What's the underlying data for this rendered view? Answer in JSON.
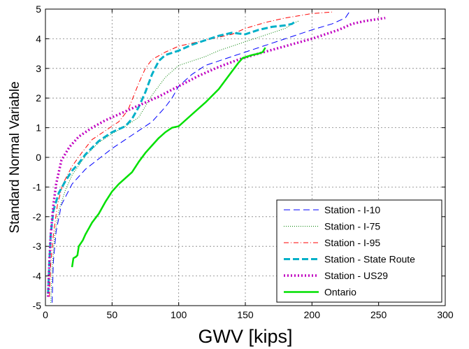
{
  "chart_data": {
    "type": "line",
    "title": "",
    "xlabel": "GWV [kips]",
    "ylabel": "Standard Normal Variable",
    "xlim": [
      0,
      300
    ],
    "ylim": [
      -5,
      5
    ],
    "xticks": [
      0,
      50,
      100,
      150,
      200,
      250,
      300
    ],
    "yticks": [
      -5,
      -4,
      -3,
      -2,
      -1,
      0,
      1,
      2,
      3,
      4,
      5
    ],
    "grid": true,
    "legend_position": "bottom-right",
    "series": [
      {
        "name": "Station - I-10",
        "color": "#0000ff",
        "style": "dashdash",
        "x": [
          5,
          6,
          8,
          12,
          20,
          30,
          40,
          50,
          60,
          70,
          80,
          90,
          95,
          100,
          110,
          120,
          140,
          160,
          180,
          200,
          215,
          225,
          228
        ],
        "y": [
          -4.9,
          -3.5,
          -2.5,
          -1.6,
          -0.9,
          -0.4,
          -0.05,
          0.3,
          0.6,
          0.9,
          1.2,
          1.7,
          2.0,
          2.4,
          2.8,
          3.1,
          3.4,
          3.7,
          4.0,
          4.3,
          4.5,
          4.7,
          4.9
        ]
      },
      {
        "name": "Station - I-75",
        "color": "#008000",
        "style": "dotted",
        "x": [
          4,
          5,
          7,
          10,
          15,
          20,
          30,
          40,
          50,
          60,
          70,
          80,
          90,
          100,
          110,
          120,
          130,
          140,
          150,
          160,
          170,
          180,
          185,
          190
        ],
        "y": [
          -4.9,
          -3.8,
          -2.6,
          -1.8,
          -1.1,
          -0.6,
          0.05,
          0.5,
          0.8,
          1.05,
          1.35,
          2.1,
          2.7,
          3.1,
          3.25,
          3.4,
          3.6,
          3.75,
          3.9,
          4.05,
          4.2,
          4.35,
          4.5,
          4.6
        ]
      },
      {
        "name": "Station - I-95",
        "color": "#ff0000",
        "style": "dashdot",
        "x": [
          3,
          4,
          6,
          9,
          13,
          20,
          28,
          35,
          45,
          55,
          62,
          70,
          75,
          80,
          90,
          100,
          120,
          140,
          150,
          165,
          180,
          200,
          215
        ],
        "y": [
          -4.7,
          -3.6,
          -2.6,
          -1.6,
          -0.9,
          -0.3,
          0.2,
          0.6,
          0.9,
          1.2,
          1.6,
          2.5,
          3.0,
          3.3,
          3.55,
          3.75,
          3.95,
          4.15,
          4.35,
          4.55,
          4.7,
          4.85,
          4.9
        ]
      },
      {
        "name": "Station - State Route",
        "color": "#00b0c8",
        "style": "dashed",
        "x": [
          2,
          3,
          4,
          6,
          10,
          15,
          20,
          25,
          30,
          40,
          50,
          60,
          65,
          70,
          75,
          80,
          85,
          90,
          100,
          110,
          120,
          130,
          140,
          150,
          160,
          170,
          180,
          185,
          188
        ],
        "y": [
          -4.6,
          -3.5,
          -2.6,
          -1.8,
          -1.2,
          -0.8,
          -0.45,
          -0.2,
          0.1,
          0.55,
          0.85,
          1.05,
          1.3,
          1.7,
          2.2,
          2.8,
          3.25,
          3.45,
          3.6,
          3.8,
          3.95,
          4.1,
          4.2,
          4.15,
          4.3,
          4.4,
          4.45,
          4.5,
          4.6
        ]
      },
      {
        "name": "Station - US29",
        "color": "#c000c0",
        "style": "dotted-thick",
        "x": [
          2,
          3,
          4,
          6,
          8,
          12,
          18,
          25,
          35,
          45,
          55,
          65,
          75,
          85,
          100,
          115,
          130,
          145,
          160,
          180,
          200,
          220,
          230,
          240,
          255
        ],
        "y": [
          -4.7,
          -3.5,
          -2.6,
          -1.6,
          -0.9,
          -0.1,
          0.35,
          0.7,
          1.0,
          1.25,
          1.45,
          1.65,
          1.85,
          2.05,
          2.4,
          2.75,
          3.05,
          3.3,
          3.5,
          3.75,
          4.0,
          4.3,
          4.5,
          4.6,
          4.7
        ]
      },
      {
        "name": "Ontario",
        "color": "#00e000",
        "style": "solid",
        "x": [
          20,
          21,
          23,
          24,
          25,
          28,
          30,
          35,
          40,
          45,
          50,
          55,
          60,
          65,
          70,
          75,
          80,
          85,
          90,
          95,
          100,
          110,
          120,
          130,
          135,
          140,
          145,
          148,
          155,
          160,
          163,
          165
        ],
        "y": [
          -3.7,
          -3.4,
          -3.35,
          -3.3,
          -3.0,
          -2.8,
          -2.6,
          -2.2,
          -1.9,
          -1.5,
          -1.15,
          -0.9,
          -0.7,
          -0.5,
          -0.15,
          0.15,
          0.4,
          0.65,
          0.85,
          1.0,
          1.05,
          1.45,
          1.85,
          2.3,
          2.6,
          2.9,
          3.2,
          3.35,
          3.45,
          3.5,
          3.55,
          3.7
        ]
      }
    ]
  }
}
